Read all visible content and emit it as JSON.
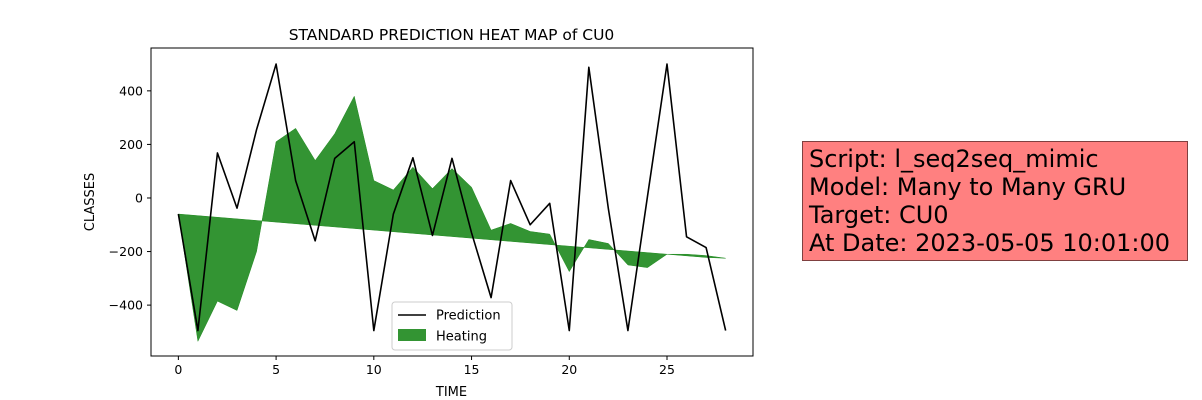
{
  "chart_data": {
    "type": "line",
    "title": "STANDARD PREDICTION HEAT MAP of CU0",
    "xlabel": "TIME",
    "ylabel": "CLASSES",
    "xlim": [
      -1.4,
      29.4
    ],
    "ylim": [
      -590,
      560
    ],
    "xticks": [
      0,
      5,
      10,
      15,
      20,
      25
    ],
    "yticks": [
      -400,
      -200,
      0,
      200,
      400
    ],
    "x": [
      0,
      1,
      2,
      3,
      4,
      5,
      6,
      7,
      8,
      9,
      10,
      11,
      12,
      13,
      14,
      15,
      16,
      17,
      18,
      19,
      20,
      21,
      22,
      23,
      24,
      25,
      26,
      27,
      28
    ],
    "series": [
      {
        "name": "Prediction",
        "color": "#000000",
        "values": [
          -60,
          -495,
          168,
          -38,
          255,
          500,
          65,
          -160,
          148,
          210,
          -495,
          -60,
          150,
          -140,
          148,
          -130,
          -372,
          65,
          -100,
          -20,
          -495,
          488,
          -40,
          -495,
          5,
          500,
          -145,
          -185,
          -495
        ]
      },
      {
        "name": "Heating",
        "color": "#228b22",
        "baseline": [
          -60,
          -66,
          -72,
          -78,
          -84,
          -90,
          -96,
          -102,
          -108,
          -114,
          -120,
          -126,
          -132,
          -138,
          -144,
          -150,
          -156,
          -162,
          -168,
          -174,
          -180,
          -186,
          -192,
          -198,
          -204,
          -210,
          -216,
          -222,
          -225
        ],
        "values": [
          -60,
          -535,
          -385,
          -420,
          -200,
          210,
          260,
          140,
          240,
          380,
          65,
          30,
          115,
          35,
          110,
          40,
          -120,
          -95,
          -125,
          -135,
          -275,
          -155,
          -170,
          -250,
          -260,
          -210,
          -210,
          -215,
          -225
        ]
      }
    ],
    "legend_position": "lower-center"
  },
  "info_box": {
    "lines": [
      "Script: l_seq2seq_mimic",
      "Model: Many to Many GRU",
      "Target: CU0",
      "At Date: 2023-05-05 10:01:00"
    ],
    "background": "#ff8080"
  }
}
